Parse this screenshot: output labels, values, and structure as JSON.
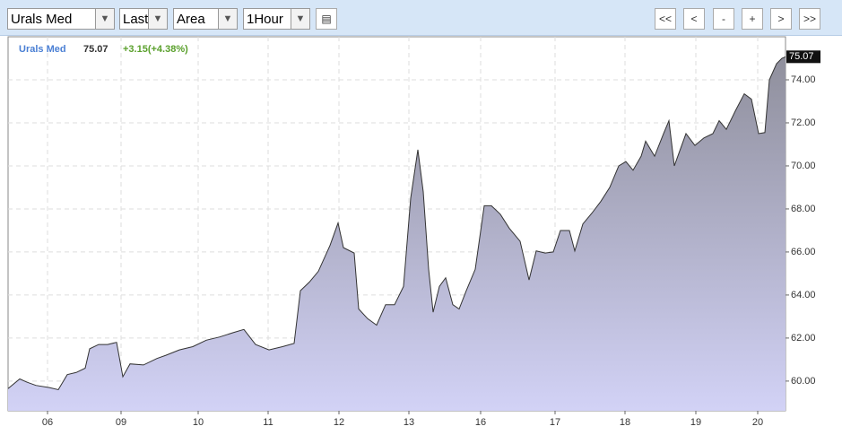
{
  "toolbar": {
    "selects": [
      "Urals Med",
      "Last",
      "Area",
      "1Hour"
    ],
    "buttons": [
      "<<",
      "<",
      "-",
      "+",
      ">",
      ">>"
    ]
  },
  "chart_data": {
    "type": "area",
    "change": "+3.15(+4.38%)",
    "series": [
      {
        "name": "Urals Med",
        "color": "#333333",
        "fill_colors": [
          "#8f8f9c",
          "#d2d2f6"
        ],
        "x": [
          0,
          13,
          21,
          31,
          46,
          56,
          66,
          76,
          86,
          91,
          101,
          111,
          121,
          128,
          136,
          151,
          166,
          176,
          191,
          206,
          221,
          236,
          251,
          263,
          276,
          291,
          306,
          319,
          326,
          336,
          346,
          359,
          368,
          374,
          386,
          391,
          401,
          411,
          421,
          431,
          441,
          449,
          457,
          463,
          469,
          474,
          481,
          488,
          496,
          503,
          511,
          521,
          531,
          539,
          549,
          559,
          571,
          581,
          589,
          599,
          608,
          616,
          626,
          632,
          641,
          651,
          661,
          671,
          681,
          689,
          697,
          706,
          711,
          721,
          731,
          737,
          743,
          756,
          766,
          776,
          786,
          793,
          801,
          811,
          821,
          829,
          837,
          844,
          849,
          857,
          863,
          867
        ],
        "values": [
          59.65,
          60.1,
          59.95,
          59.8,
          59.7,
          59.6,
          60.3,
          60.4,
          60.6,
          61.5,
          61.7,
          61.7,
          61.8,
          60.2,
          60.8,
          60.75,
          61.05,
          61.2,
          61.45,
          61.6,
          61.9,
          62.05,
          62.25,
          62.4,
          61.7,
          61.45,
          61.6,
          61.75,
          64.2,
          64.6,
          65.1,
          66.3,
          67.35,
          66.2,
          65.95,
          63.35,
          62.9,
          62.6,
          63.55,
          63.55,
          64.4,
          68.5,
          70.75,
          68.8,
          65.2,
          63.2,
          64.4,
          64.8,
          63.55,
          63.35,
          64.2,
          65.2,
          68.15,
          68.15,
          67.75,
          67.1,
          66.5,
          64.7,
          66.05,
          65.95,
          66.0,
          67.0,
          67.0,
          66.05,
          67.3,
          67.8,
          68.35,
          69.0,
          70.0,
          70.2,
          69.8,
          70.45,
          71.15,
          70.45,
          71.5,
          72.1,
          70.0,
          71.5,
          70.95,
          71.3,
          71.5,
          72.1,
          71.7,
          72.55,
          73.35,
          73.1,
          71.5,
          71.55,
          74.0,
          74.75,
          75.0,
          75.07
        ]
      }
    ],
    "xlim": [
      0,
      867
    ],
    "xticks": [
      {
        "value": 44,
        "label": "06"
      },
      {
        "value": 126,
        "label": "09"
      },
      {
        "value": 212,
        "label": "10"
      },
      {
        "value": 290,
        "label": "11"
      },
      {
        "value": 369,
        "label": "12"
      },
      {
        "value": 447,
        "label": "13"
      },
      {
        "value": 527,
        "label": "16"
      },
      {
        "value": 610,
        "label": "17"
      },
      {
        "value": 688,
        "label": "18"
      },
      {
        "value": 767,
        "label": "19"
      },
      {
        "value": 836,
        "label": "20"
      }
    ],
    "ylim": [
      58.62,
      76.0
    ],
    "yticks": [
      {
        "value": 60,
        "label": "60.00"
      },
      {
        "value": 62,
        "label": "62.00"
      },
      {
        "value": 64,
        "label": "64.00"
      },
      {
        "value": 66,
        "label": "66.00"
      },
      {
        "value": 68,
        "label": "68.00"
      },
      {
        "value": 70,
        "label": "70.00"
      },
      {
        "value": 72,
        "label": "72.00"
      },
      {
        "value": 74,
        "label": "74.00"
      }
    ],
    "grid": true
  }
}
